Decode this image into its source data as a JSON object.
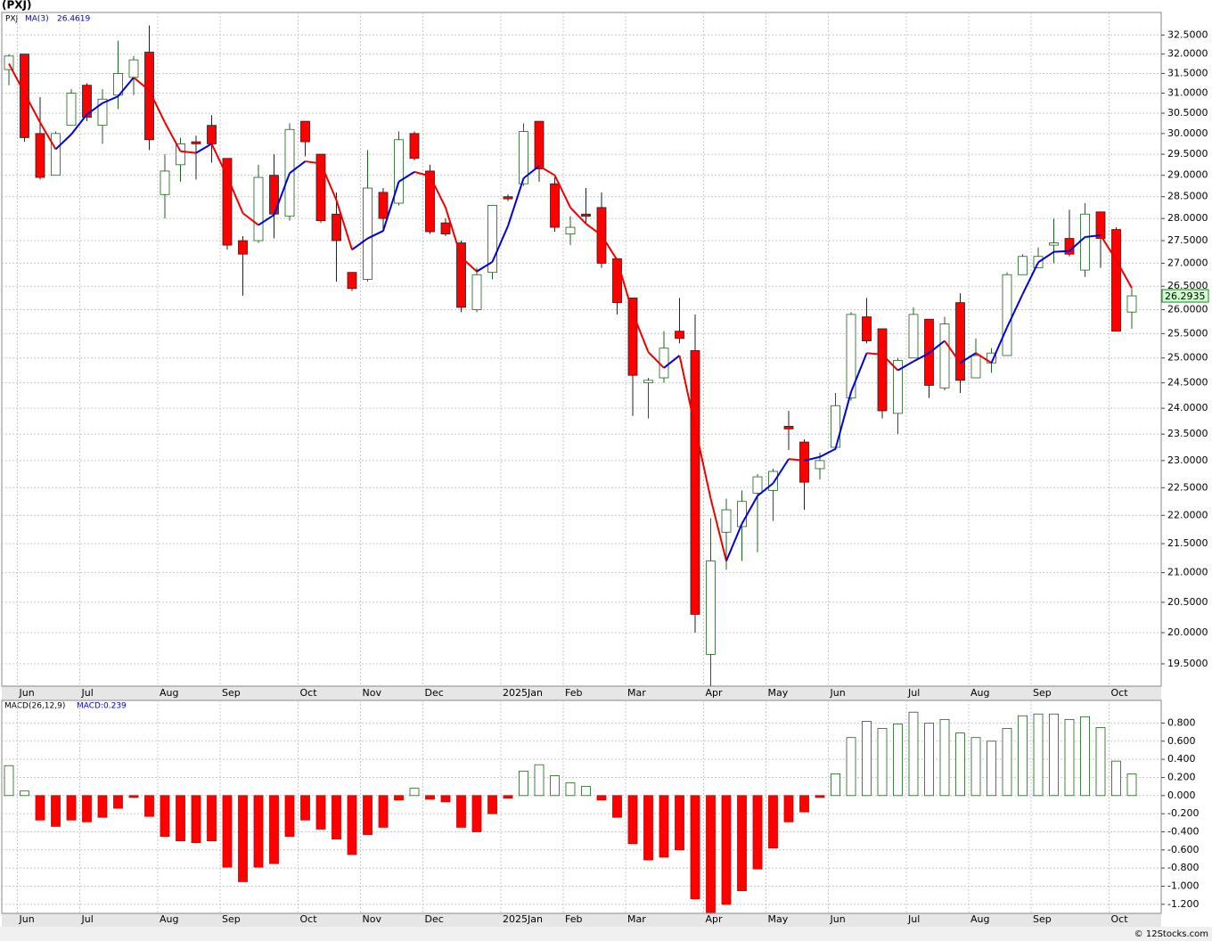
{
  "chart_data": [
    {
      "type": "candlestick",
      "title": "(PXJ)",
      "name": "PXJ",
      "up_color": "#ffffff",
      "up_stroke": "#1f5f1f",
      "down_color": "#ff0000",
      "log": true,
      "grid": true,
      "categories": [
        null,
        "Jun",
        null,
        null,
        null,
        "Jul",
        null,
        null,
        null,
        null,
        "Aug",
        null,
        null,
        null,
        "Sep",
        null,
        null,
        null,
        null,
        "Oct",
        null,
        null,
        null,
        "Nov",
        null,
        null,
        null,
        "Dec",
        null,
        null,
        null,
        null,
        "2025Jan",
        null,
        null,
        null,
        "Feb",
        null,
        null,
        null,
        "Mar",
        null,
        null,
        null,
        null,
        "Apr",
        null,
        null,
        null,
        "May",
        null,
        null,
        null,
        "Jun",
        null,
        null,
        null,
        null,
        "Jul",
        null,
        null,
        null,
        "Aug",
        null,
        null,
        null,
        "Sep",
        null,
        null,
        null,
        null,
        "Oct",
        null
      ],
      "open": [
        31.6,
        32.0,
        30.0,
        29.0,
        30.2,
        31.2,
        30.2,
        30.95,
        31.4,
        32.05,
        28.55,
        29.25,
        29.8,
        30.2,
        29.4,
        27.5,
        27.5,
        29.0,
        28.05,
        30.3,
        29.5,
        28.1,
        26.8,
        26.65,
        28.6,
        28.35,
        30.0,
        29.1,
        27.9,
        27.45,
        26.0,
        26.8,
        28.5,
        28.8,
        30.3,
        28.8,
        27.65,
        28.1,
        28.25,
        27.1,
        26.25,
        24.5,
        24.6,
        25.55,
        25.15,
        19.65,
        21.7,
        21.8,
        22.4,
        22.45,
        23.65,
        23.35,
        22.85,
        23.25,
        24.2,
        25.85,
        25.6,
        23.9,
        25.0,
        25.8,
        24.4,
        26.15,
        24.6,
        24.9,
        25.05,
        26.75,
        26.9,
        27.4,
        27.55,
        26.85,
        28.15,
        27.75,
        25.95
      ],
      "high": [
        32.0,
        32.0,
        30.9,
        30.05,
        31.1,
        31.25,
        31.1,
        32.35,
        31.95,
        32.75,
        29.5,
        29.9,
        29.95,
        30.45,
        29.4,
        27.6,
        29.25,
        29.5,
        30.25,
        30.3,
        29.5,
        28.6,
        26.8,
        29.6,
        28.7,
        30.05,
        30.05,
        29.25,
        28.0,
        27.5,
        26.9,
        28.3,
        28.55,
        30.25,
        30.3,
        28.95,
        28.05,
        28.7,
        28.6,
        27.1,
        26.25,
        24.6,
        25.55,
        26.25,
        25.9,
        21.95,
        22.3,
        22.45,
        22.75,
        22.85,
        23.95,
        23.4,
        23.15,
        24.3,
        25.95,
        26.25,
        25.6,
        25.0,
        26.05,
        25.8,
        25.85,
        26.35,
        25.4,
        25.2,
        26.8,
        27.2,
        27.35,
        28.0,
        28.2,
        28.35,
        28.15,
        27.8,
        26.45
      ],
      "low": [
        31.2,
        29.8,
        28.9,
        29.0,
        30.2,
        30.3,
        29.75,
        30.6,
        30.95,
        29.6,
        28.0,
        28.85,
        28.9,
        29.3,
        27.3,
        26.3,
        27.45,
        27.55,
        27.95,
        29.45,
        27.9,
        26.6,
        26.4,
        26.6,
        27.7,
        28.3,
        29.35,
        27.65,
        27.6,
        25.95,
        25.95,
        26.65,
        28.4,
        28.75,
        28.85,
        27.7,
        27.4,
        27.9,
        26.9,
        25.9,
        23.85,
        23.8,
        24.5,
        25.3,
        20.0,
        19.15,
        21.05,
        21.2,
        21.35,
        21.9,
        23.2,
        22.1,
        22.65,
        23.2,
        24.15,
        25.3,
        23.8,
        23.5,
        25.0,
        24.2,
        24.35,
        24.3,
        24.6,
        24.7,
        25.05,
        26.75,
        26.9,
        27.0,
        27.15,
        26.7,
        26.9,
        25.55,
        25.6
      ],
      "close": [
        31.95,
        29.9,
        28.95,
        30.0,
        31.0,
        30.4,
        30.85,
        31.5,
        31.85,
        29.85,
        29.1,
        29.75,
        29.75,
        29.75,
        27.4,
        27.2,
        28.95,
        28.1,
        30.1,
        29.8,
        27.95,
        27.5,
        26.45,
        28.7,
        28.0,
        29.85,
        29.4,
        27.7,
        27.65,
        26.05,
        26.75,
        28.3,
        28.45,
        30.05,
        29.15,
        27.8,
        27.8,
        28.05,
        27.0,
        26.15,
        24.65,
        24.55,
        25.2,
        25.4,
        20.3,
        21.2,
        22.1,
        22.25,
        22.7,
        22.8,
        23.6,
        22.6,
        23.0,
        24.05,
        25.9,
        25.35,
        23.95,
        24.95,
        25.9,
        24.45,
        25.7,
        24.55,
        25.05,
        25.1,
        26.75,
        27.15,
        27.15,
        27.45,
        27.2,
        28.1,
        27.55,
        25.55,
        26.2935
      ],
      "ma": {
        "name": "MA(3)",
        "up_color": "#0000dd",
        "down_color": "#ee0000",
        "values": [
          31.75,
          31.0,
          30.27,
          29.62,
          29.98,
          30.47,
          30.75,
          30.92,
          31.4,
          31.07,
          30.27,
          29.57,
          29.53,
          29.75,
          28.97,
          28.12,
          27.85,
          28.08,
          29.05,
          29.33,
          29.28,
          28.42,
          27.3,
          27.55,
          27.72,
          28.85,
          29.08,
          28.98,
          28.25,
          27.13,
          26.82,
          27.03,
          27.83,
          28.93,
          29.22,
          29.0,
          28.25,
          27.88,
          27.62,
          27.07,
          25.93,
          25.12,
          24.8,
          25.05,
          23.63,
          22.3,
          21.2,
          21.85,
          22.35,
          22.58,
          23.03,
          23.0,
          23.07,
          23.22,
          24.32,
          25.1,
          25.07,
          24.75,
          24.93,
          25.1,
          25.35,
          24.9,
          25.1,
          24.9,
          25.63,
          26.33,
          27.02,
          27.25,
          27.27,
          27.58,
          27.62,
          27.07,
          26.4619
        ]
      },
      "ylim": [
        19.15,
        33.1
      ],
      "yticks": [
        {
          "value": 19.5,
          "label": "19.5000"
        },
        {
          "value": 20,
          "label": "20.0000"
        },
        {
          "value": 20.5,
          "label": "20.5000"
        },
        {
          "value": 21,
          "label": "21.0000"
        },
        {
          "value": 21.5,
          "label": "21.5000"
        },
        {
          "value": 22,
          "label": "22.0000"
        },
        {
          "value": 22.5,
          "label": "22.5000"
        },
        {
          "value": 23,
          "label": "23.0000"
        },
        {
          "value": 23.5,
          "label": "23.5000"
        },
        {
          "value": 24,
          "label": "24.0000"
        },
        {
          "value": 24.5,
          "label": "24.5000"
        },
        {
          "value": 25,
          "label": "25.0000"
        },
        {
          "value": 25.5,
          "label": "25.5000"
        },
        {
          "value": 26,
          "label": "26.0000"
        },
        {
          "value": 26.5,
          "label": "26.5000"
        },
        {
          "value": 27,
          "label": "27.0000"
        },
        {
          "value": 27.5,
          "label": "27.5000"
        },
        {
          "value": 28,
          "label": "28.0000"
        },
        {
          "value": 28.5,
          "label": "28.5000"
        },
        {
          "value": 29,
          "label": "29.0000"
        },
        {
          "value": 29.5,
          "label": "29.5000"
        },
        {
          "value": 30,
          "label": "30.0000"
        },
        {
          "value": 30.5,
          "label": "30.5000"
        },
        {
          "value": 31,
          "label": "31.0000"
        },
        {
          "value": 31.5,
          "label": "31.5000"
        },
        {
          "value": 32,
          "label": "32.0000"
        },
        {
          "value": 32.5,
          "label": "32.5000"
        }
      ]
    },
    {
      "type": "bar",
      "name": "MACD(26,12,9)",
      "label": "MACD:0.239",
      "up_color": "#ffffff",
      "up_stroke": "#1f5f1f",
      "down_color": "#ff0000",
      "grid": true,
      "categories": [
        null,
        "Jun",
        null,
        null,
        null,
        "Jul",
        null,
        null,
        null,
        null,
        "Aug",
        null,
        null,
        null,
        "Sep",
        null,
        null,
        null,
        null,
        "Oct",
        null,
        null,
        null,
        "Nov",
        null,
        null,
        null,
        "Dec",
        null,
        null,
        null,
        null,
        "2025Jan",
        null,
        null,
        null,
        "Feb",
        null,
        null,
        null,
        "Mar",
        null,
        null,
        null,
        null,
        "Apr",
        null,
        null,
        null,
        "May",
        null,
        null,
        null,
        "Jun",
        null,
        null,
        null,
        null,
        "Jul",
        null,
        null,
        null,
        "Aug",
        null,
        null,
        null,
        "Sep",
        null,
        null,
        null,
        null,
        "Oct",
        null
      ],
      "values": [
        0.33,
        0.05,
        -0.27,
        -0.34,
        -0.27,
        -0.29,
        -0.24,
        -0.14,
        -0.02,
        -0.23,
        -0.45,
        -0.5,
        -0.52,
        -0.5,
        -0.79,
        -0.95,
        -0.79,
        -0.75,
        -0.45,
        -0.27,
        -0.37,
        -0.48,
        -0.65,
        -0.43,
        -0.35,
        -0.05,
        0.08,
        -0.04,
        -0.07,
        -0.35,
        -0.4,
        -0.2,
        -0.03,
        0.27,
        0.34,
        0.22,
        0.14,
        0.1,
        -0.05,
        -0.24,
        -0.53,
        -0.71,
        -0.68,
        -0.6,
        -1.14,
        -1.29,
        -1.2,
        -1.05,
        -0.81,
        -0.58,
        -0.29,
        -0.18,
        -0.02,
        0.24,
        0.64,
        0.82,
        0.74,
        0.79,
        0.92,
        0.8,
        0.84,
        0.69,
        0.64,
        0.6,
        0.74,
        0.88,
        0.9,
        0.9,
        0.84,
        0.87,
        0.75,
        0.38,
        0.239
      ],
      "ylim": [
        -1.3,
        1.05
      ],
      "yticks": [
        {
          "value": -1.2,
          "label": "-1.200"
        },
        {
          "value": -1.0,
          "label": "-1.000"
        },
        {
          "value": -0.8,
          "label": "-0.800"
        },
        {
          "value": -0.6,
          "label": "-0.600"
        },
        {
          "value": -0.4,
          "label": "-0.400"
        },
        {
          "value": -0.2,
          "label": "-0.200"
        },
        {
          "value": 0,
          "label": "0.000"
        },
        {
          "value": 0.2,
          "label": "0.200"
        },
        {
          "value": 0.4,
          "label": "0.400"
        },
        {
          "value": 0.6,
          "label": "0.600"
        },
        {
          "value": 0.8,
          "label": "0.800"
        }
      ]
    }
  ],
  "watermark": "© 12Stocks.com"
}
